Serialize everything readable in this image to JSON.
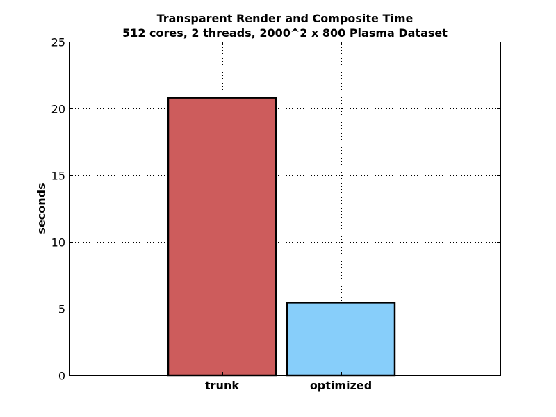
{
  "chart_data": {
    "type": "bar",
    "title": "Transparent Render and Composite Time",
    "subtitle": "512 cores, 2 threads, 2000^2 x 800 Plasma Dataset",
    "xlabel": "",
    "ylabel": "seconds",
    "categories": [
      "trunk",
      "optimized"
    ],
    "values": [
      20.8,
      5.45
    ],
    "bar_colors": [
      "#cd5c5c",
      "#87cefa"
    ],
    "ylim": [
      0,
      25
    ],
    "yticks": [
      0,
      5,
      10,
      15,
      20,
      25
    ],
    "grid": true
  }
}
